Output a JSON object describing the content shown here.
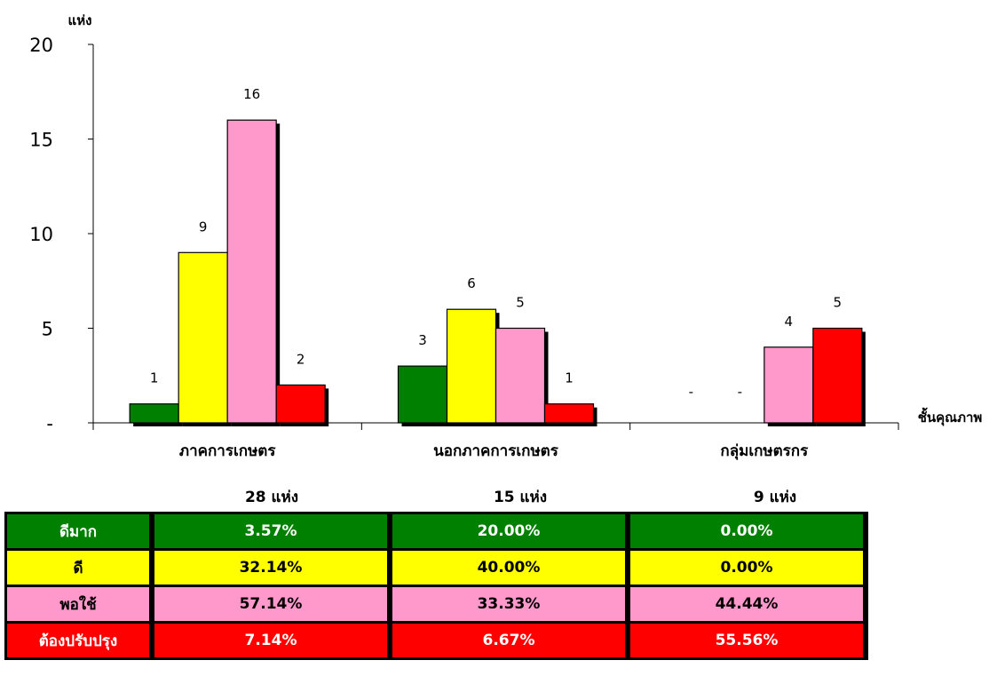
{
  "chart_data": {
    "type": "bar",
    "ylabel": "แห่ง",
    "xlabel": "ชั้นคุณภาพ",
    "ylim": [
      0,
      20
    ],
    "yticks": [
      "-",
      "5",
      "10",
      "15",
      "20"
    ],
    "categories": [
      "ภาคการเกษตร",
      "นอกภาคการเกษตร",
      "กลุ่มเกษตรกร"
    ],
    "series": [
      {
        "values": [
          1,
          3,
          0
        ],
        "labels": [
          "1",
          "3",
          "-"
        ],
        "color": "#008000"
      },
      {
        "values": [
          9,
          6,
          0
        ],
        "labels": [
          "9",
          "6",
          "-"
        ],
        "color": "#ffff00"
      },
      {
        "values": [
          16,
          5,
          4
        ],
        "labels": [
          "16",
          "5",
          "4"
        ],
        "color": "#ff99cc"
      },
      {
        "values": [
          2,
          1,
          5
        ],
        "labels": [
          "2",
          "1",
          "5"
        ],
        "color": "#ff0000"
      }
    ],
    "totals": [
      "28  แห่ง",
      "15  แห่ง",
      "9  แห่ง"
    ],
    "grid": false,
    "legend": "none"
  },
  "table": {
    "rows": [
      {
        "label": "ดีมาก",
        "values": [
          "3.57%",
          "20.00%",
          "0.00%"
        ],
        "bg": "#008000",
        "fg": "#ffffff"
      },
      {
        "label": "ดี",
        "values": [
          "32.14%",
          "40.00%",
          "0.00%"
        ],
        "bg": "#ffff00",
        "fg": "#000000"
      },
      {
        "label": "พอใช้",
        "values": [
          "57.14%",
          "33.33%",
          "44.44%"
        ],
        "bg": "#ff99cc",
        "fg": "#000000"
      },
      {
        "label": "ต้องปรับปรุง",
        "values": [
          "7.14%",
          "6.67%",
          "55.56%"
        ],
        "bg": "#ff0000",
        "fg": "#ffffff"
      }
    ]
  }
}
